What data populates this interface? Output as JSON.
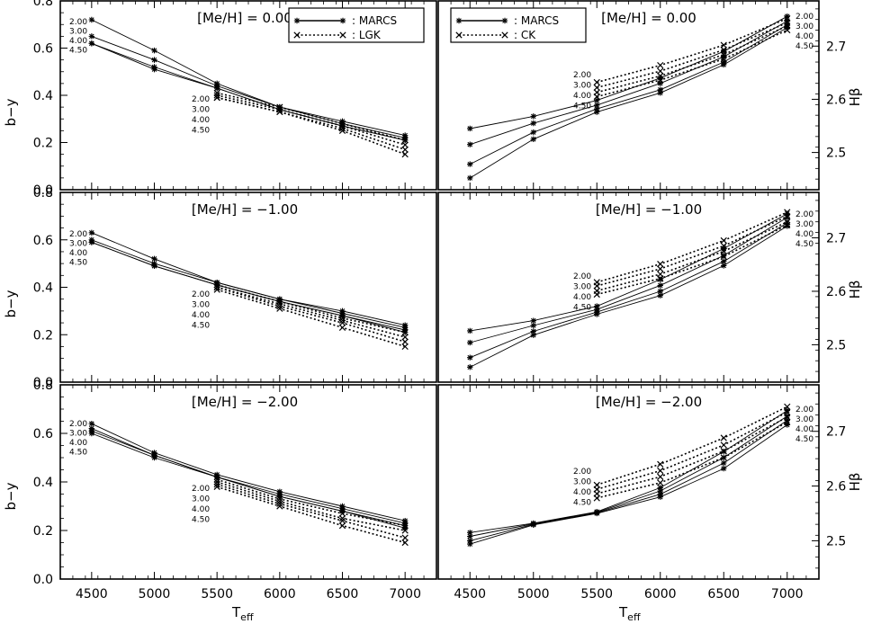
{
  "figure": {
    "x_axis_title": "T",
    "x_axis_title_sub": "eff",
    "left_axis_title": "b−y",
    "right_axis_title": "Hβ",
    "x_ticks": [
      "4500",
      "5000",
      "5500",
      "6000",
      "6500",
      "7000"
    ],
    "left_ticks": [
      "0.0",
      "0.2",
      "0.4",
      "0.6",
      "0.8"
    ],
    "right_ticks": [
      "2.5",
      "2.6",
      "2.7"
    ],
    "legend_left": {
      "solid": ": MARCS",
      "dotted": ": LGK"
    },
    "legend_right": {
      "solid": ": MARCS",
      "dotted": ": CK"
    },
    "metallicity_labels": [
      "[Me/H] =   0.00",
      "[Me/H] = −1.00",
      "[Me/H] = −2.00"
    ],
    "gravity_labels": [
      "2.00",
      "3.00",
      "4.00",
      "4.50"
    ]
  },
  "chart_data": [
    {
      "type": "line",
      "panel": "left-top",
      "metallicity": "0.00",
      "ylabel": "b−y",
      "xlim": [
        4250,
        7250
      ],
      "ylim": [
        0.0,
        0.8
      ],
      "x": [
        4500,
        5000,
        5500,
        6000,
        6500,
        7000
      ],
      "series": [
        {
          "name": "MARCS",
          "logg": "2.00",
          "style": "solid",
          "values": [
            0.72,
            0.59,
            0.45,
            0.35,
            0.29,
            0.23
          ]
        },
        {
          "name": "MARCS",
          "logg": "3.00",
          "style": "solid",
          "values": [
            0.65,
            0.55,
            0.44,
            0.35,
            0.28,
            0.22
          ]
        },
        {
          "name": "MARCS",
          "logg": "4.00",
          "style": "solid",
          "values": [
            0.62,
            0.52,
            0.43,
            0.34,
            0.27,
            0.21
          ]
        },
        {
          "name": "MARCS",
          "logg": "4.50",
          "style": "solid",
          "values": [
            0.62,
            0.51,
            0.43,
            0.34,
            0.27,
            0.21
          ]
        },
        {
          "name": "LGK",
          "logg": "2.00",
          "style": "dotted",
          "x": [
            5500,
            6000,
            6500,
            7000
          ],
          "values": [
            0.41,
            0.35,
            0.28,
            0.21
          ]
        },
        {
          "name": "LGK",
          "logg": "3.00",
          "style": "dotted",
          "x": [
            5500,
            6000,
            6500,
            7000
          ],
          "values": [
            0.4,
            0.34,
            0.27,
            0.19
          ]
        },
        {
          "name": "LGK",
          "logg": "4.00",
          "style": "dotted",
          "x": [
            5500,
            6000,
            6500,
            7000
          ],
          "values": [
            0.39,
            0.33,
            0.26,
            0.17
          ]
        },
        {
          "name": "LGK",
          "logg": "4.50",
          "style": "dotted",
          "x": [
            5500,
            6000,
            6500,
            7000
          ],
          "values": [
            0.39,
            0.33,
            0.25,
            0.15
          ]
        }
      ]
    },
    {
      "type": "line",
      "panel": "left-middle",
      "metallicity": "−1.00",
      "ylabel": "b−y",
      "xlim": [
        4250,
        7250
      ],
      "ylim": [
        0.0,
        0.8
      ],
      "x": [
        4500,
        5000,
        5500,
        6000,
        6500,
        7000
      ],
      "series": [
        {
          "name": "MARCS",
          "logg": "2.00",
          "style": "solid",
          "values": [
            0.63,
            0.52,
            0.42,
            0.35,
            0.3,
            0.24
          ]
        },
        {
          "name": "MARCS",
          "logg": "3.00",
          "style": "solid",
          "values": [
            0.6,
            0.5,
            0.42,
            0.35,
            0.29,
            0.23
          ]
        },
        {
          "name": "MARCS",
          "logg": "4.00",
          "style": "solid",
          "values": [
            0.59,
            0.49,
            0.41,
            0.34,
            0.28,
            0.22
          ]
        },
        {
          "name": "MARCS",
          "logg": "4.50",
          "style": "solid",
          "values": [
            0.59,
            0.49,
            0.41,
            0.34,
            0.28,
            0.21
          ]
        },
        {
          "name": "LGK",
          "logg": "2.00",
          "style": "dotted",
          "x": [
            5500,
            6000,
            6500,
            7000
          ],
          "values": [
            0.41,
            0.34,
            0.27,
            0.21
          ]
        },
        {
          "name": "LGK",
          "logg": "3.00",
          "style": "dotted",
          "x": [
            5500,
            6000,
            6500,
            7000
          ],
          "values": [
            0.4,
            0.33,
            0.26,
            0.19
          ]
        },
        {
          "name": "LGK",
          "logg": "4.00",
          "style": "dotted",
          "x": [
            5500,
            6000,
            6500,
            7000
          ],
          "values": [
            0.4,
            0.32,
            0.25,
            0.17
          ]
        },
        {
          "name": "LGK",
          "logg": "4.50",
          "style": "dotted",
          "x": [
            5500,
            6000,
            6500,
            7000
          ],
          "values": [
            0.39,
            0.31,
            0.23,
            0.15
          ]
        }
      ]
    },
    {
      "type": "line",
      "panel": "left-bottom",
      "metallicity": "−2.00",
      "ylabel": "b−y",
      "xlim": [
        4250,
        7250
      ],
      "ylim": [
        0.0,
        0.8
      ],
      "x": [
        4500,
        5000,
        5500,
        6000,
        6500,
        7000
      ],
      "series": [
        {
          "name": "MARCS",
          "logg": "2.00",
          "style": "solid",
          "values": [
            0.64,
            0.52,
            0.43,
            0.36,
            0.3,
            0.24
          ]
        },
        {
          "name": "MARCS",
          "logg": "3.00",
          "style": "solid",
          "values": [
            0.62,
            0.51,
            0.42,
            0.35,
            0.29,
            0.23
          ]
        },
        {
          "name": "MARCS",
          "logg": "4.00",
          "style": "solid",
          "values": [
            0.61,
            0.51,
            0.42,
            0.34,
            0.28,
            0.22
          ]
        },
        {
          "name": "MARCS",
          "logg": "4.50",
          "style": "solid",
          "values": [
            0.6,
            0.5,
            0.42,
            0.34,
            0.28,
            0.21
          ]
        },
        {
          "name": "LGK",
          "logg": "2.00",
          "style": "dotted",
          "x": [
            5500,
            6000,
            6500,
            7000
          ],
          "values": [
            0.41,
            0.33,
            0.27,
            0.22
          ]
        },
        {
          "name": "LGK",
          "logg": "3.00",
          "style": "dotted",
          "x": [
            5500,
            6000,
            6500,
            7000
          ],
          "values": [
            0.4,
            0.32,
            0.25,
            0.2
          ]
        },
        {
          "name": "LGK",
          "logg": "4.00",
          "style": "dotted",
          "x": [
            5500,
            6000,
            6500,
            7000
          ],
          "values": [
            0.39,
            0.31,
            0.24,
            0.17
          ]
        },
        {
          "name": "LGK",
          "logg": "4.50",
          "style": "dotted",
          "x": [
            5500,
            6000,
            6500,
            7000
          ],
          "values": [
            0.38,
            0.3,
            0.22,
            0.15
          ]
        }
      ]
    },
    {
      "type": "line",
      "panel": "right-top",
      "metallicity": "0.00",
      "ylabel": "Hβ",
      "xlim": [
        4250,
        7250
      ],
      "ylim": [
        2.43,
        2.785
      ],
      "x": [
        4500,
        5000,
        5500,
        6000,
        6500,
        7000
      ],
      "series": [
        {
          "name": "MARCS",
          "logg": "2.00",
          "style": "solid",
          "values": [
            2.545,
            2.568,
            2.598,
            2.64,
            2.69,
            2.756
          ]
        },
        {
          "name": "MARCS",
          "logg": "3.00",
          "style": "solid",
          "values": [
            2.515,
            2.555,
            2.589,
            2.63,
            2.68,
            2.747
          ]
        },
        {
          "name": "MARCS",
          "logg": "4.00",
          "style": "solid",
          "values": [
            2.478,
            2.538,
            2.582,
            2.618,
            2.67,
            2.74
          ]
        },
        {
          "name": "MARCS",
          "logg": "4.50",
          "style": "solid",
          "values": [
            2.452,
            2.525,
            2.576,
            2.612,
            2.665,
            2.735
          ]
        },
        {
          "name": "CK",
          "logg": "2.00",
          "style": "dotted",
          "x": [
            5500,
            6000,
            6500,
            7000
          ],
          "values": [
            2.632,
            2.664,
            2.702,
            2.752
          ]
        },
        {
          "name": "CK",
          "logg": "3.00",
          "style": "dotted",
          "x": [
            5500,
            6000,
            6500,
            7000
          ],
          "values": [
            2.622,
            2.653,
            2.693,
            2.744
          ]
        },
        {
          "name": "CK",
          "logg": "4.00",
          "style": "dotted",
          "x": [
            5500,
            6000,
            6500,
            7000
          ],
          "values": [
            2.613,
            2.644,
            2.684,
            2.738
          ]
        },
        {
          "name": "CK",
          "logg": "4.50",
          "style": "dotted",
          "x": [
            5500,
            6000,
            6500,
            7000
          ],
          "values": [
            2.605,
            2.636,
            2.676,
            2.73
          ]
        }
      ]
    },
    {
      "type": "line",
      "panel": "right-middle",
      "metallicity": "−1.00",
      "ylabel": "Hβ",
      "xlim": [
        4250,
        7250
      ],
      "ylim": [
        2.43,
        2.785
      ],
      "x": [
        4500,
        5000,
        5500,
        6000,
        6500,
        7000
      ],
      "series": [
        {
          "name": "MARCS",
          "logg": "2.00",
          "style": "solid",
          "values": [
            2.526,
            2.545,
            2.572,
            2.622,
            2.68,
            2.745
          ]
        },
        {
          "name": "MARCS",
          "logg": "3.00",
          "style": "solid",
          "values": [
            2.504,
            2.536,
            2.566,
            2.611,
            2.667,
            2.738
          ]
        },
        {
          "name": "MARCS",
          "logg": "4.00",
          "style": "solid",
          "values": [
            2.476,
            2.525,
            2.561,
            2.6,
            2.656,
            2.728
          ]
        },
        {
          "name": "MARCS",
          "logg": "4.50",
          "style": "solid",
          "values": [
            2.458,
            2.518,
            2.557,
            2.592,
            2.648,
            2.722
          ]
        },
        {
          "name": "CK",
          "logg": "2.00",
          "style": "dotted",
          "x": [
            5500,
            6000,
            6500,
            7000
          ],
          "values": [
            2.617,
            2.651,
            2.695,
            2.748
          ]
        },
        {
          "name": "CK",
          "logg": "3.00",
          "style": "dotted",
          "x": [
            5500,
            6000,
            6500,
            7000
          ],
          "values": [
            2.61,
            2.642,
            2.685,
            2.74
          ]
        },
        {
          "name": "CK",
          "logg": "4.00",
          "style": "dotted",
          "x": [
            5500,
            6000,
            6500,
            7000
          ],
          "values": [
            2.601,
            2.632,
            2.675,
            2.73
          ]
        },
        {
          "name": "CK",
          "logg": "4.50",
          "style": "dotted",
          "x": [
            5500,
            6000,
            6500,
            7000
          ],
          "values": [
            2.594,
            2.624,
            2.665,
            2.724
          ]
        }
      ]
    },
    {
      "type": "line",
      "panel": "right-bottom",
      "metallicity": "−2.00",
      "ylabel": "Hβ",
      "xlim": [
        4250,
        7250
      ],
      "ylim": [
        2.43,
        2.785
      ],
      "x": [
        4500,
        5000,
        5500,
        6000,
        6500,
        7000
      ],
      "series": [
        {
          "name": "MARCS",
          "logg": "2.00",
          "style": "solid",
          "values": [
            2.515,
            2.532,
            2.553,
            2.597,
            2.663,
            2.738
          ]
        },
        {
          "name": "MARCS",
          "logg": "3.00",
          "style": "solid",
          "values": [
            2.508,
            2.531,
            2.552,
            2.591,
            2.652,
            2.728
          ]
        },
        {
          "name": "MARCS",
          "logg": "4.00",
          "style": "solid",
          "values": [
            2.5,
            2.53,
            2.551,
            2.585,
            2.642,
            2.72
          ]
        },
        {
          "name": "MARCS",
          "logg": "4.50",
          "style": "solid",
          "values": [
            2.494,
            2.529,
            2.55,
            2.58,
            2.632,
            2.712
          ]
        },
        {
          "name": "CK",
          "logg": "2.00",
          "style": "dotted",
          "x": [
            5500,
            6000,
            6500,
            7000
          ],
          "values": [
            2.602,
            2.64,
            2.688,
            2.745
          ]
        },
        {
          "name": "CK",
          "logg": "3.00",
          "style": "dotted",
          "x": [
            5500,
            6000,
            6500,
            7000
          ],
          "values": [
            2.594,
            2.628,
            2.675,
            2.735
          ]
        },
        {
          "name": "CK",
          "logg": "4.00",
          "style": "dotted",
          "x": [
            5500,
            6000,
            6500,
            7000
          ],
          "values": [
            2.586,
            2.617,
            2.664,
            2.726
          ]
        },
        {
          "name": "CK",
          "logg": "4.50",
          "style": "dotted",
          "x": [
            5500,
            6000,
            6500,
            7000
          ],
          "values": [
            2.578,
            2.606,
            2.652,
            2.717
          ]
        }
      ]
    }
  ]
}
